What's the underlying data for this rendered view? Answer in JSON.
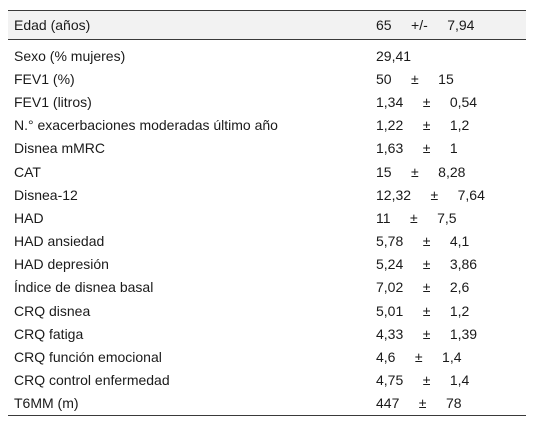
{
  "table": {
    "header": {
      "label": "Edad (años)",
      "value": "65     +/-     7,94"
    },
    "rows": [
      {
        "label": "Sexo (% mujeres)",
        "value": "29,41"
      },
      {
        "label": "FEV1 (%)",
        "value": "50     ±     15"
      },
      {
        "label": "FEV1 (litros)",
        "value": "1,34     ±     0,54"
      },
      {
        "label": "N.° exacerbaciones moderadas último año",
        "value": "1,22     ±     1,2"
      },
      {
        "label": "Disnea mMRC",
        "value": "1,63     ±     1"
      },
      {
        "label": "CAT",
        "value": "15     ±     8,28"
      },
      {
        "label": "Disnea-12",
        "value": "12,32     ±     7,64"
      },
      {
        "label": "HAD",
        "value": "11     ±     7,5"
      },
      {
        "label": "HAD ansiedad",
        "value": "5,78     ±     4,1"
      },
      {
        "label": "HAD depresión",
        "value": "5,24     ±     3,86"
      },
      {
        "label": "Índice de disnea basal",
        "value": "7,02     ±     2,6"
      },
      {
        "label": "CRQ disnea",
        "value": "5,01     ±     1,2"
      },
      {
        "label": "CRQ fatiga",
        "value": "4,33     ±     1,39"
      },
      {
        "label": "CRQ función emocional",
        "value": "4,6     ±     1,4"
      },
      {
        "label": "CRQ control enfermedad",
        "value": "4,75     ±     1,4"
      },
      {
        "label": "T6MM (m)",
        "value": "447     ±     78"
      }
    ]
  }
}
